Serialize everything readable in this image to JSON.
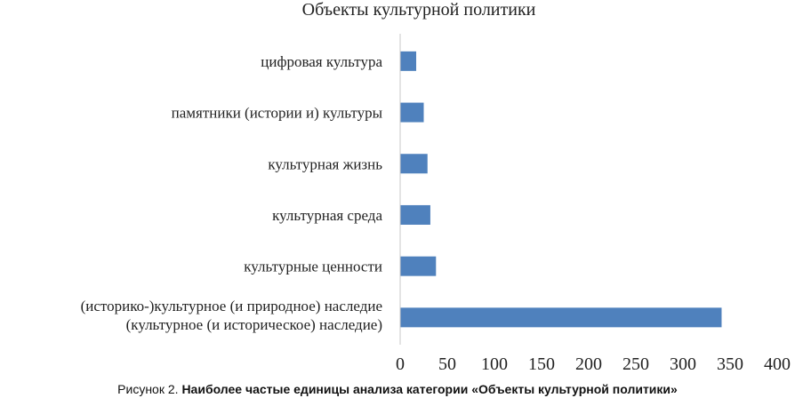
{
  "chart_data": {
    "type": "bar",
    "orientation": "horizontal",
    "title": "Объекты культурной политики",
    "categories": [
      [
        "цифровая культура"
      ],
      [
        "памятники (истории и) культуры"
      ],
      [
        "культурная жизнь"
      ],
      [
        "культурная среда"
      ],
      [
        "культурные ценности"
      ],
      [
        "(историко-)культурное (и природное) наследие",
        "(культурное (и историческое) наследие)"
      ]
    ],
    "values": [
      17,
      25,
      29,
      32,
      38,
      341
    ],
    "xlim": [
      0,
      400
    ],
    "xticks": [
      "0",
      "50",
      "100",
      "150",
      "200",
      "250",
      "300",
      "350",
      "400"
    ],
    "bar_color": "#4f81bd",
    "axis_color": "#c8c8c8",
    "grid": false,
    "legend": "none"
  },
  "caption": {
    "prefix": "Рисунок 2. ",
    "text": "Наиболее частые единицы анализа категории «Объекты культурной политики»"
  }
}
